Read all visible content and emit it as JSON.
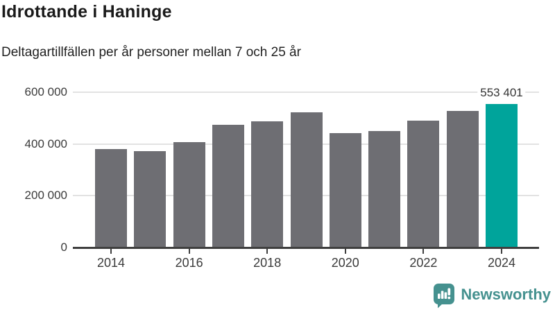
{
  "header": {
    "title": "Idrottande i Haninge",
    "subtitle": "Deltagartillfällen per år personer mellan 7 och 25 år"
  },
  "chart_data": {
    "type": "bar",
    "title": "Idrottande i Haninge",
    "subtitle": "Deltagartillfällen per år personer mellan 7 och 25 år",
    "categories": [
      2014,
      2015,
      2016,
      2017,
      2018,
      2019,
      2020,
      2021,
      2022,
      2023,
      2024
    ],
    "values": [
      380000,
      372000,
      408000,
      473000,
      487000,
      522000,
      441000,
      451000,
      489000,
      529000,
      553401
    ],
    "highlight_index": 10,
    "highlight_value_label": "553 401",
    "ylim": [
      0,
      600000
    ],
    "y_ticks": [
      0,
      200000,
      400000,
      600000
    ],
    "y_tick_labels": [
      "0",
      "200 000",
      "400 000",
      "600 000"
    ],
    "x_tick_labels": [
      "2014",
      "2016",
      "2018",
      "2020",
      "2022",
      "2024"
    ],
    "grid": true,
    "legend": false,
    "colors": {
      "bar": "#6e6e73",
      "highlight_bar": "#00a49b",
      "gridline": "#e2e2e2",
      "axis": "#3f3f3f",
      "tick_text": "#3a3a3a"
    }
  },
  "footer": {
    "brand": "Newsworthy",
    "brand_color": "#45918f",
    "logo_icon": "newsworthy-bubble-bar-chart-icon"
  }
}
